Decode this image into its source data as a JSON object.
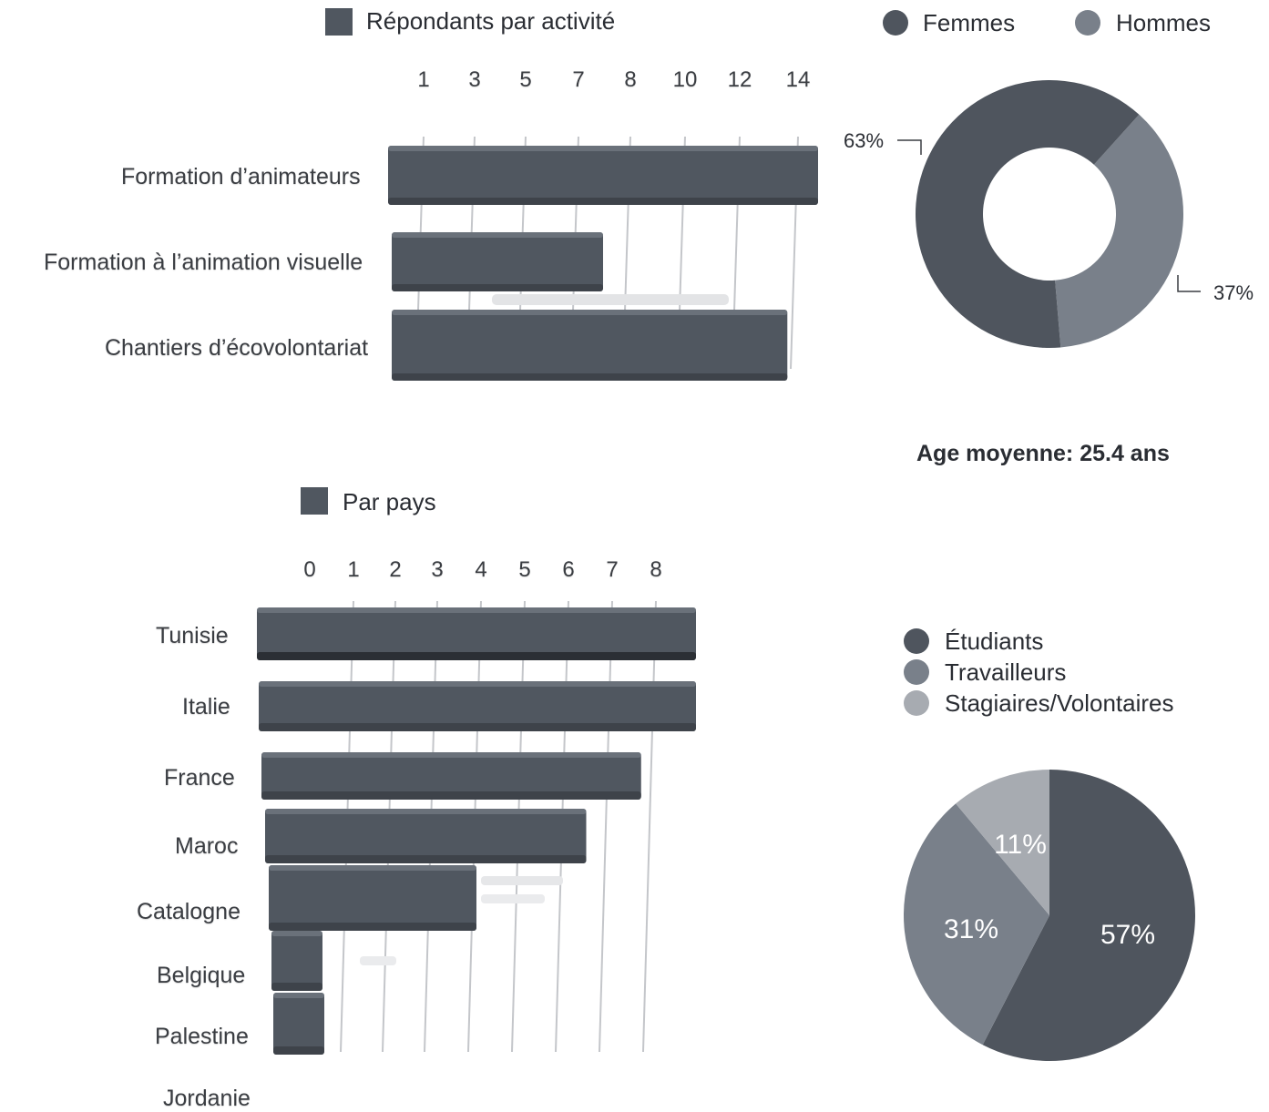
{
  "activity_chart": {
    "legend": "Répondants par activité",
    "color": "#505760"
  },
  "gender_chart": {
    "legend": [
      {
        "label": "Femmes",
        "color": "#4f555e"
      },
      {
        "label": "Hommes",
        "color": "#79808a"
      }
    ],
    "labels": {
      "femmes": "63%",
      "hommes": "37%"
    }
  },
  "age": {
    "text": "Age moyenne: 25.4 ans"
  },
  "country_chart": {
    "legend": "Par pays",
    "color": "#505760"
  },
  "status_chart": {
    "legend": [
      {
        "label": "Étudiants",
        "color": "#4f555e"
      },
      {
        "label": "Travailleurs",
        "color": "#79808a"
      },
      {
        "label": "Stagiaires/Volontaires",
        "color": "#a7abb1"
      }
    ],
    "labels": {
      "etudiants": "57%",
      "travailleurs": "31%",
      "stagiaires": "11%"
    }
  },
  "chart_data": [
    {
      "type": "bar",
      "orientation": "horizontal",
      "title": "Répondants par activité",
      "tick_labels": [
        "1",
        "3",
        "5",
        "7",
        "8",
        "10",
        "12",
        "14"
      ],
      "categories": [
        "Formation d’animateurs",
        "Formation à l’animation visuelle",
        "Chantiers d’écovolontariat"
      ],
      "values": [
        14,
        7,
        13
      ],
      "xlim": [
        0,
        14
      ]
    },
    {
      "type": "pie",
      "variant": "donut",
      "categories": [
        "Femmes",
        "Hommes"
      ],
      "values": [
        63,
        37
      ],
      "labels": [
        "63%",
        "37%"
      ]
    },
    {
      "type": "bar",
      "orientation": "horizontal",
      "title": "Par pays",
      "tick_labels": [
        "0",
        "1",
        "2",
        "3",
        "4",
        "5",
        "6",
        "7",
        "8"
      ],
      "categories": [
        "Tunisie",
        "Italie",
        "France",
        "Maroc",
        "Catalogne",
        "Belgique",
        "Palestine",
        "Jordanie"
      ],
      "values": [
        8,
        8,
        7,
        6,
        4,
        1,
        1,
        0
      ],
      "xlim": [
        0,
        8
      ]
    },
    {
      "type": "pie",
      "categories": [
        "Étudiants",
        "Travailleurs",
        "Stagiaires/Volontaires"
      ],
      "values": [
        57,
        31,
        11
      ],
      "labels": [
        "57%",
        "31%",
        "11%"
      ]
    }
  ]
}
